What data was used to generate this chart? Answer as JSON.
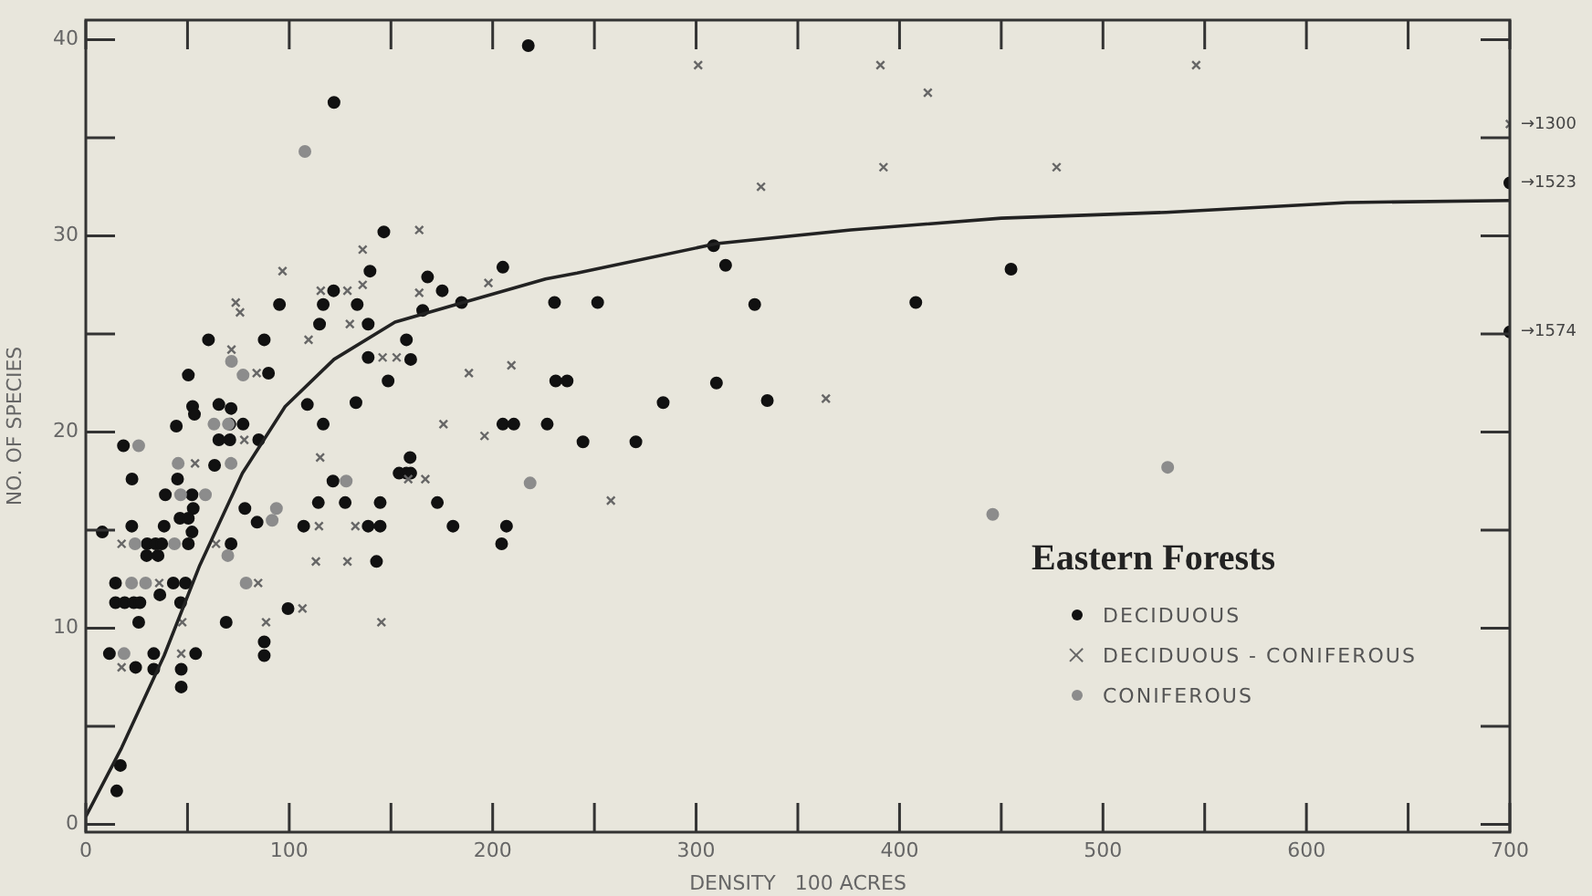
{
  "chart_data": {
    "type": "scatter",
    "xlabel": "DENSITY   100 ACRES",
    "ylabel": "NO. OF SPECIES",
    "legend_title": "Eastern Forests",
    "legend": "bottom right",
    "grid": false,
    "xlim": [
      0,
      700
    ],
    "ylim": [
      -0.4,
      41
    ],
    "xticks": [
      0,
      {
        "value": 50,
        "label": null
      },
      100,
      {
        "value": 150,
        "label": null
      },
      200,
      {
        "value": 250,
        "label": null
      },
      300,
      {
        "value": 350,
        "label": null
      },
      400,
      {
        "value": 450,
        "label": null
      },
      500,
      {
        "value": 550,
        "label": null
      },
      600,
      {
        "value": 650,
        "label": null
      },
      700
    ],
    "yticks": [
      0,
      {
        "value": 5,
        "label": null
      },
      10,
      {
        "value": 15,
        "label": null
      },
      20,
      {
        "value": 25,
        "label": null
      },
      30,
      {
        "value": 35,
        "label": null
      },
      40
    ],
    "series": [
      {
        "name": "DECIDUOUS",
        "color": "#111111",
        "marker": "circle",
        "x": [
          8.1,
          18.5,
          22.7,
          22.6,
          14.6,
          14.6,
          19.1,
          23.6,
          26.6,
          26,
          11.6,
          24.5,
          33.4,
          33.4,
          46.9,
          46.9,
          54,
          36.4,
          43,
          49,
          46.6,
          30.2,
          34.3,
          37.3,
          29.9,
          35.5,
          38.5,
          39.1,
          45.1,
          44.5,
          50.4,
          52.5,
          53.4,
          46.3,
          50.4,
          52.8,
          52.2,
          52.2,
          50.4,
          60.3,
          63.3,
          65.4,
          71.4,
          65.4,
          70.8,
          70.8,
          77.3,
          71.4,
          69,
          78.2,
          84.2,
          85,
          87.7,
          89.8,
          87.7,
          87.7,
          95.2,
          99.4,
          108.9,
          107.1,
          114.3,
          114.9,
          116.7,
          121.8,
          116.7,
          121.5,
          127.5,
          132.8,
          133.4,
          138.8,
          139.7,
          138.8,
          138.8,
          144.7,
          142.9,
          144.7,
          146.5,
          148.6,
          157.6,
          159.7,
          159.4,
          154,
          157.6,
          159.7,
          165.6,
          168,
          175.2,
          172.8,
          180.5,
          184.7,
          122,
          217.5,
          205,
          205,
          210.4,
          226.8,
          204.4,
          206.8,
          17,
          15.2,
          230.4,
          251.6,
          308.6,
          314.5,
          328.8,
          408,
          231,
          236.6,
          310,
          283.8,
          335,
          244.4,
          270.4,
          454.8,
          700,
          700
        ],
        "values": [
          14.9,
          19.3,
          17.6,
          15.2,
          12.3,
          11.3,
          11.3,
          11.3,
          11.3,
          10.3,
          8.7,
          8.0,
          8.7,
          7.9,
          7.9,
          7.0,
          8.7,
          11.7,
          12.3,
          12.3,
          11.3,
          14.3,
          14.3,
          14.3,
          13.7,
          13.7,
          15.2,
          16.8,
          17.6,
          20.3,
          22.9,
          21.3,
          20.9,
          15.6,
          15.6,
          16.1,
          16.8,
          14.9,
          14.3,
          24.7,
          18.3,
          21.4,
          21.2,
          19.6,
          19.6,
          20.4,
          20.4,
          14.3,
          10.3,
          16.1,
          15.4,
          19.6,
          24.7,
          23.0,
          9.3,
          8.6,
          26.5,
          11.0,
          21.4,
          15.2,
          16.4,
          25.5,
          26.5,
          27.2,
          20.4,
          17.5,
          16.4,
          21.5,
          26.5,
          25.5,
          28.2,
          23.8,
          15.2,
          15.2,
          13.4,
          16.4,
          30.2,
          22.6,
          24.7,
          23.7,
          18.7,
          17.9,
          17.9,
          17.9,
          26.2,
          27.9,
          27.2,
          16.4,
          15.2,
          26.6,
          36.8,
          39.7,
          28.4,
          20.4,
          20.4,
          20.4,
          14.3,
          15.2,
          3.0,
          1.7,
          26.6,
          26.6,
          29.5,
          28.5,
          26.5,
          26.6,
          22.6,
          22.6,
          22.5,
          21.5,
          21.6,
          19.5,
          19.5,
          28.3,
          32.7,
          25.1
        ]
      },
      {
        "name": "DECIDUOUS - CONIFEROUS",
        "color": "#666666",
        "marker": "cross",
        "x": [
          17.6,
          36.1,
          47.4,
          46.9,
          17.6,
          53.7,
          64,
          73.7,
          75.8,
          71.6,
          84,
          96.7,
          109.5,
          115.5,
          128.6,
          136.1,
          136.1,
          129.8,
          145.9,
          152.8,
          163.9,
          163.9,
          115.2,
          114.6,
          132.5,
          113.1,
          128.6,
          145.3,
          175.8,
          158.5,
          166.9,
          188.3,
          106.5,
          88.6,
          84.7,
          77.9,
          197.9,
          209.2,
          196,
          301,
          390.6,
          413.9,
          392.1,
          331.9,
          363.8,
          258.1,
          545.8,
          477.2,
          700
        ],
        "values": [
          14.3,
          12.3,
          10.3,
          8.7,
          8.0,
          18.4,
          14.3,
          26.6,
          26.1,
          24.2,
          23.0,
          28.2,
          24.7,
          27.2,
          27.2,
          29.3,
          27.5,
          25.5,
          23.8,
          23.8,
          30.3,
          27.1,
          18.7,
          15.2,
          15.2,
          13.4,
          13.4,
          10.3,
          20.4,
          17.6,
          17.6,
          23.0,
          11.0,
          10.3,
          12.3,
          19.6,
          27.6,
          23.4,
          19.8,
          38.7,
          38.7,
          37.3,
          33.5,
          32.5,
          21.7,
          16.5,
          38.7,
          33.5,
          35.7
        ]
      },
      {
        "name": "CONIFEROUS",
        "color": "#8c8c8c",
        "marker": "circle",
        "x": [
          26,
          22.5,
          29.4,
          18.8,
          45.4,
          71.4,
          46.6,
          58.8,
          63,
          70.1,
          43.6,
          93.7,
          91.6,
          78.8,
          128,
          69.8,
          24.2,
          77.3,
          71.6,
          107.7,
          218.4,
          445.8,
          531.8
        ],
        "values": [
          19.3,
          12.3,
          12.3,
          8.7,
          18.4,
          18.4,
          16.8,
          16.8,
          20.4,
          20.4,
          14.3,
          16.1,
          15.5,
          12.3,
          17.5,
          13.7,
          14.3,
          22.9,
          23.6,
          34.3,
          17.4,
          15.8,
          18.2
        ]
      },
      {
        "type": "line",
        "color": "#222222",
        "marker": "none",
        "line_style": "solid",
        "x": [
          0,
          17.6,
          38.5,
          56,
          77,
          98,
          122,
          152,
          182,
          226,
          241.5,
          310,
          376,
          450,
          531,
          620,
          700
        ],
        "values": [
          0.4,
          3.9,
          8.6,
          13.2,
          17.9,
          21.3,
          23.7,
          25.6,
          26.5,
          27.8,
          28.1,
          29.6,
          30.3,
          30.9,
          31.2,
          31.7,
          31.8
        ]
      }
    ],
    "annotations": [
      "→1300",
      "→1523",
      "→1574"
    ]
  }
}
